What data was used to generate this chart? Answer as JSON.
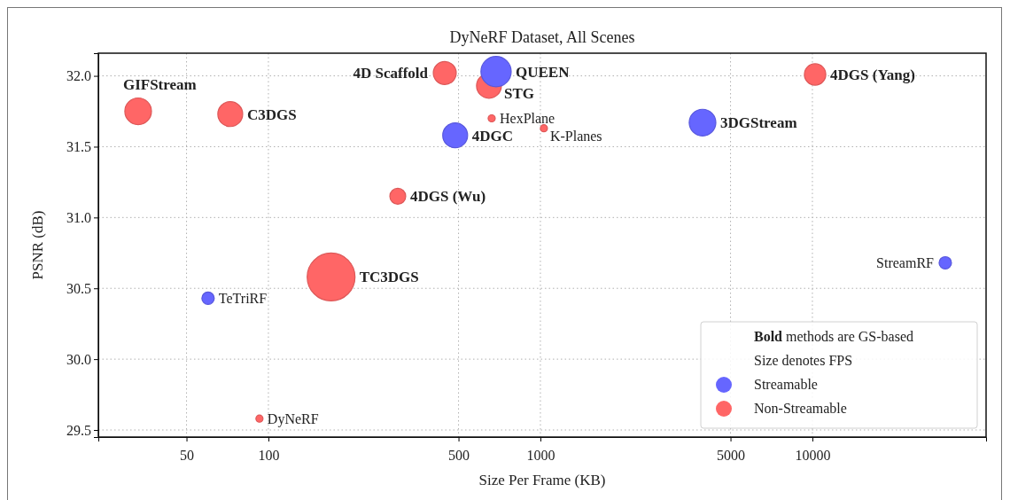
{
  "chart_data": {
    "type": "bubble",
    "title": "DyNeRF Dataset, All Scenes",
    "xlabel": "Size Per Frame (KB)",
    "ylabel": "PSNR (dB)",
    "log": "x",
    "grid": true,
    "legend": "bottom right",
    "xlim": [
      23.7,
      43500
    ],
    "xticks": [
      50,
      100,
      500,
      1000,
      5000,
      10000
    ],
    "ylim": [
      29.45,
      32.16
    ],
    "yticks": [
      {
        "value": 29.5,
        "label": "29.5"
      },
      {
        "value": 30,
        "label": "30.0"
      },
      {
        "value": 30.5,
        "label": "30.5"
      },
      {
        "value": 31,
        "label": "31.0"
      },
      {
        "value": 31.5,
        "label": "31.5"
      },
      {
        "value": 32,
        "label": "32.0"
      }
    ],
    "annotations": [
      "Bold methods are GS-based",
      "Size denotes FPS",
      {
        "text": "QUEEN",
        "x": 687,
        "y": 32.03
      },
      {
        "text": "4DGC",
        "x": 486,
        "y": 31.58
      },
      {
        "text": "3DGStream",
        "x": 3945,
        "y": 31.67
      },
      {
        "text": "TeTriRF",
        "x": 60,
        "y": 30.43
      },
      {
        "text": "StreamRF",
        "x": 30800,
        "y": 30.68
      },
      {
        "text": "GIFStream",
        "x": 33.2,
        "y": 31.75
      },
      {
        "text": "C3DGS",
        "x": 72.4,
        "y": 31.73
      },
      {
        "text": "4D Scaffold",
        "x": 445,
        "y": 32.02
      },
      {
        "text": "STG",
        "x": 647,
        "y": 31.93
      },
      {
        "text": "4DGS (Yang)",
        "x": 10230,
        "y": 32.01
      },
      {
        "text": "4DGS (Wu)",
        "x": 299,
        "y": 31.15
      },
      {
        "text": "TC3DGS",
        "x": 170,
        "y": 30.58
      },
      {
        "text": "HexPlane",
        "x": 662,
        "y": 31.7
      },
      {
        "text": "K-Planes",
        "x": 1030,
        "y": 31.63
      },
      {
        "text": "DyNeRF",
        "x": 92.7,
        "y": 29.58
      }
    ],
    "series": [
      {
        "name": "Streamable",
        "color": "#6666ff",
        "x": [
          687,
          486,
          3945
        ],
        "values": [
          32.03,
          31.58,
          31.67
        ],
        "sizes": [
          0.4,
          0.27,
          0.31
        ]
      },
      {
        "color": "#6666ff",
        "x": [
          60,
          30800
        ],
        "values": [
          30.43,
          30.68
        ],
        "sizes": [
          0.067,
          0.067
        ]
      },
      {
        "name": "Non-Streamable",
        "color": "#ff6666",
        "x": [
          33.2,
          72.4,
          445,
          647,
          10230,
          299,
          170
        ],
        "values": [
          31.75,
          31.73,
          32.02,
          31.93,
          32.01,
          31.15,
          30.58
        ],
        "sizes": [
          0.31,
          0.27,
          0.23,
          0.27,
          0.2,
          0.11,
          1
        ]
      },
      {
        "color": "#ff6666",
        "x": [
          662,
          1030,
          92.7
        ],
        "values": [
          31.7,
          31.63,
          29.58
        ],
        "sizes": [
          0.022,
          0.022,
          0.022
        ]
      }
    ]
  }
}
